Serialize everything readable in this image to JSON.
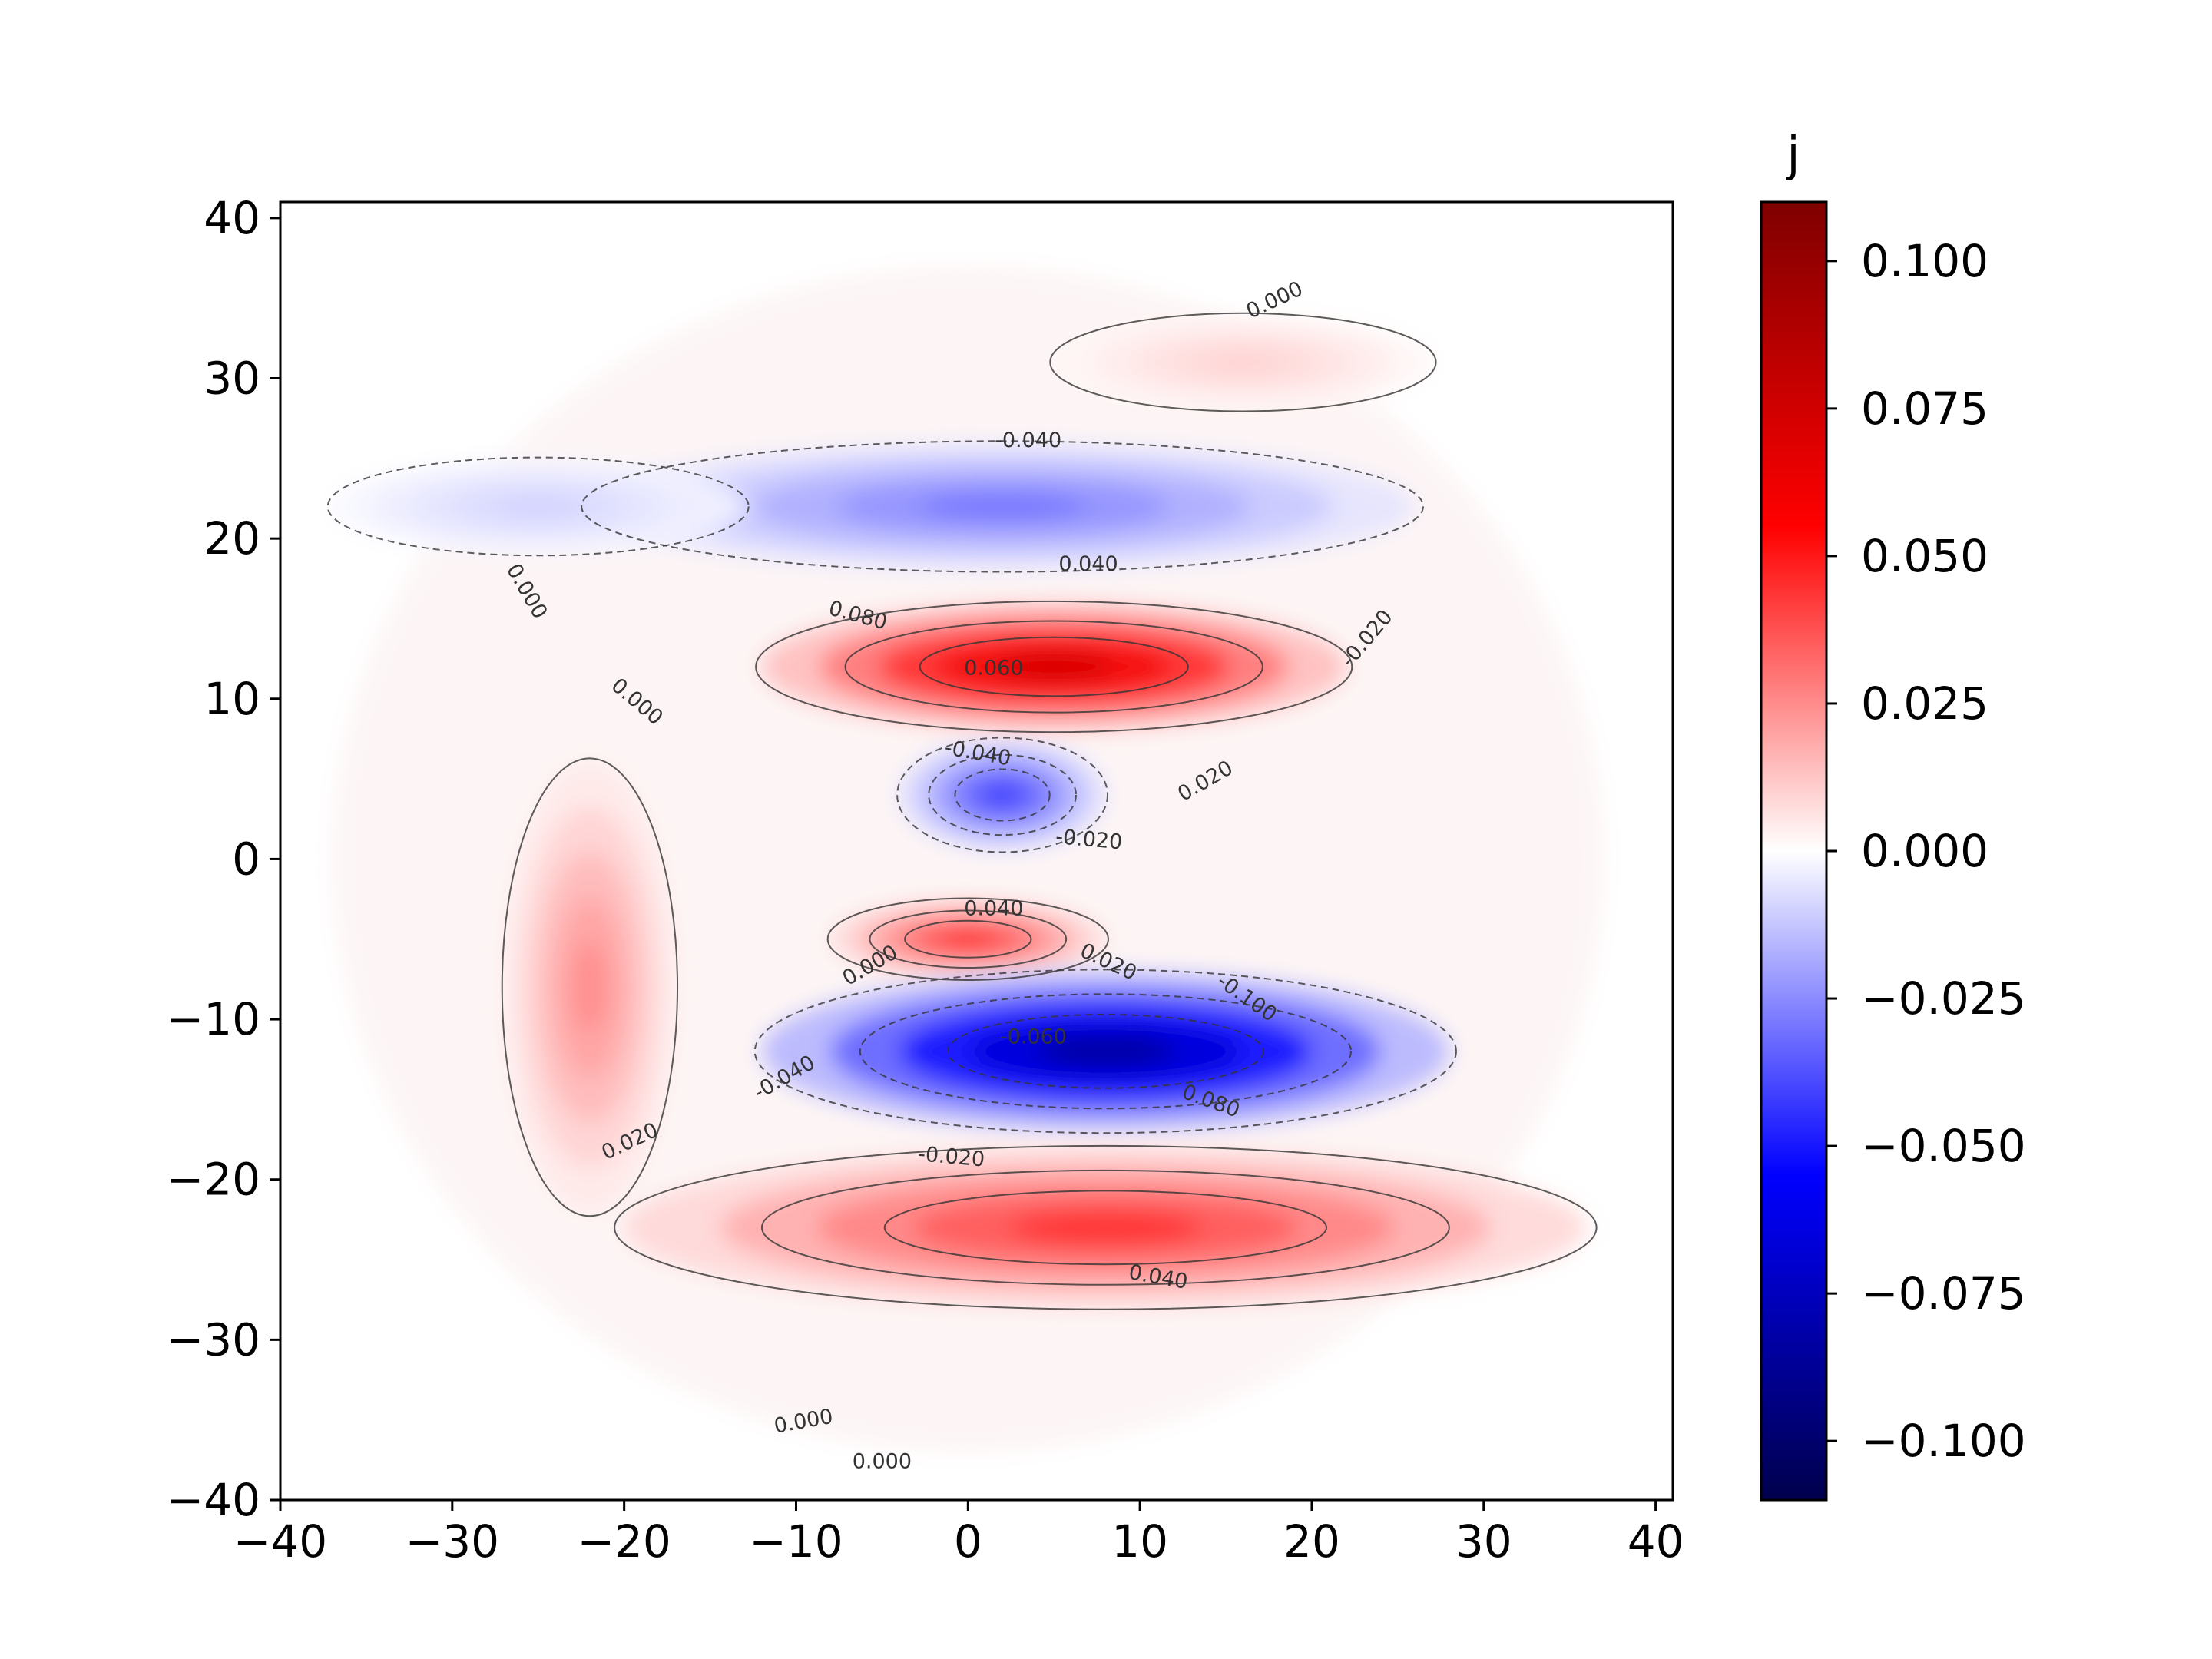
{
  "chart_data": {
    "type": "heatmap",
    "subtype": "filled-contour",
    "colormap": "seismic",
    "colorbar": {
      "title": "j",
      "range": [
        -0.11,
        0.11
      ],
      "ticks": [
        0.1,
        0.075,
        0.05,
        0.025,
        0.0,
        -0.025,
        -0.05,
        -0.075,
        -0.1
      ],
      "tick_labels": [
        "0.100",
        "0.075",
        "0.050",
        "0.025",
        "0.000",
        "−0.025",
        "−0.050",
        "−0.075",
        "−0.100"
      ]
    },
    "x_ticks": [
      -40,
      -30,
      -20,
      -10,
      0,
      10,
      20,
      30,
      40
    ],
    "x_tick_labels": [
      "−40",
      "−30",
      "−20",
      "−10",
      "0",
      "10",
      "20",
      "30",
      "40"
    ],
    "y_ticks": [
      40,
      30,
      20,
      10,
      0,
      -10,
      -20,
      -30,
      -40
    ],
    "y_tick_labels": [
      "40",
      "30",
      "20",
      "10",
      "0",
      "−10",
      "−20",
      "−30",
      "−40"
    ],
    "xlim": [
      -40,
      41
    ],
    "ylim": [
      -40,
      41
    ],
    "grid": false,
    "contour_levels": [
      -0.1,
      -0.08,
      -0.06,
      -0.04,
      -0.02,
      0.0,
      0.02,
      0.04,
      0.06,
      0.08
    ],
    "regions": [
      {
        "name": "inner-core",
        "center": [
          2,
          4
        ],
        "radii": [
          6,
          3.5
        ],
        "value": -0.042
      },
      {
        "name": "positive-crescent-upper",
        "center": [
          5,
          12
        ],
        "radii": [
          17,
          4
        ],
        "value": 0.075
      },
      {
        "name": "negative-crescent-upper",
        "center": [
          2,
          22
        ],
        "radii": [
          24,
          4
        ],
        "value": -0.03
      },
      {
        "name": "positive-band-inner",
        "center": [
          0,
          -5
        ],
        "radii": [
          8,
          2.5
        ],
        "value": 0.045
      },
      {
        "name": "negative-crescent-lower",
        "center": [
          8,
          -12
        ],
        "radii": [
          20,
          5
        ],
        "value": -0.085
      },
      {
        "name": "positive-crescent-lower",
        "center": [
          8,
          -23
        ],
        "radii": [
          28,
          5
        ],
        "value": 0.045
      },
      {
        "name": "positive-arc-outer-left",
        "center": [
          -22,
          -8
        ],
        "radii": [
          5,
          14
        ],
        "value": 0.025
      },
      {
        "name": "positive-arc-top-right",
        "center": [
          16,
          31
        ],
        "radii": [
          11,
          3
        ],
        "value": 0.01
      },
      {
        "name": "negative-arc-top-left",
        "center": [
          -25,
          22
        ],
        "radii": [
          12,
          3
        ],
        "value": -0.01
      }
    ],
    "contour_labels": [
      {
        "text": "0.000",
        "x": 18,
        "y": 34.5,
        "angle": 25
      },
      {
        "text": "-0.040",
        "x": 3.5,
        "y": 25.7,
        "angle": 0
      },
      {
        "text": "0.000",
        "x": -26,
        "y": 16.5,
        "angle": -60
      },
      {
        "text": "0.040",
        "x": 7,
        "y": 18,
        "angle": 0
      },
      {
        "text": "0.080",
        "x": -6.5,
        "y": 14.8,
        "angle": -15
      },
      {
        "text": "-0.020",
        "x": 23.5,
        "y": 13.5,
        "angle": 50
      },
      {
        "text": "0.060",
        "x": 1.5,
        "y": 11.5,
        "angle": 0
      },
      {
        "text": "0.000",
        "x": -19.5,
        "y": 9.5,
        "angle": -40
      },
      {
        "text": "-0.040",
        "x": 0.5,
        "y": 6.2,
        "angle": -10
      },
      {
        "text": "0.020",
        "x": 14,
        "y": 4.5,
        "angle": 30
      },
      {
        "text": "-0.020",
        "x": 7,
        "y": 0.8,
        "angle": -5
      },
      {
        "text": "0.040",
        "x": 1.5,
        "y": -3.5,
        "angle": 0
      },
      {
        "text": "0.000",
        "x": -5.5,
        "y": -7,
        "angle": 30
      },
      {
        "text": "0.020",
        "x": 8,
        "y": -6.8,
        "angle": -25
      },
      {
        "text": "-0.100",
        "x": 16,
        "y": -9,
        "angle": -35
      },
      {
        "text": "-0.060",
        "x": 3.8,
        "y": -11.5,
        "angle": 0
      },
      {
        "text": "-0.040",
        "x": -10.5,
        "y": -14,
        "angle": 30
      },
      {
        "text": "0.080",
        "x": 14,
        "y": -15.5,
        "angle": -20
      },
      {
        "text": "0.020",
        "x": -19.5,
        "y": -18,
        "angle": 25
      },
      {
        "text": "-0.020",
        "x": -1,
        "y": -19,
        "angle": -5
      },
      {
        "text": "0.040",
        "x": 11,
        "y": -26.5,
        "angle": -10
      },
      {
        "text": "0.000",
        "x": -9.5,
        "y": -35.5,
        "angle": 10
      },
      {
        "text": "0.000",
        "x": -5,
        "y": -38,
        "angle": 0
      }
    ]
  }
}
